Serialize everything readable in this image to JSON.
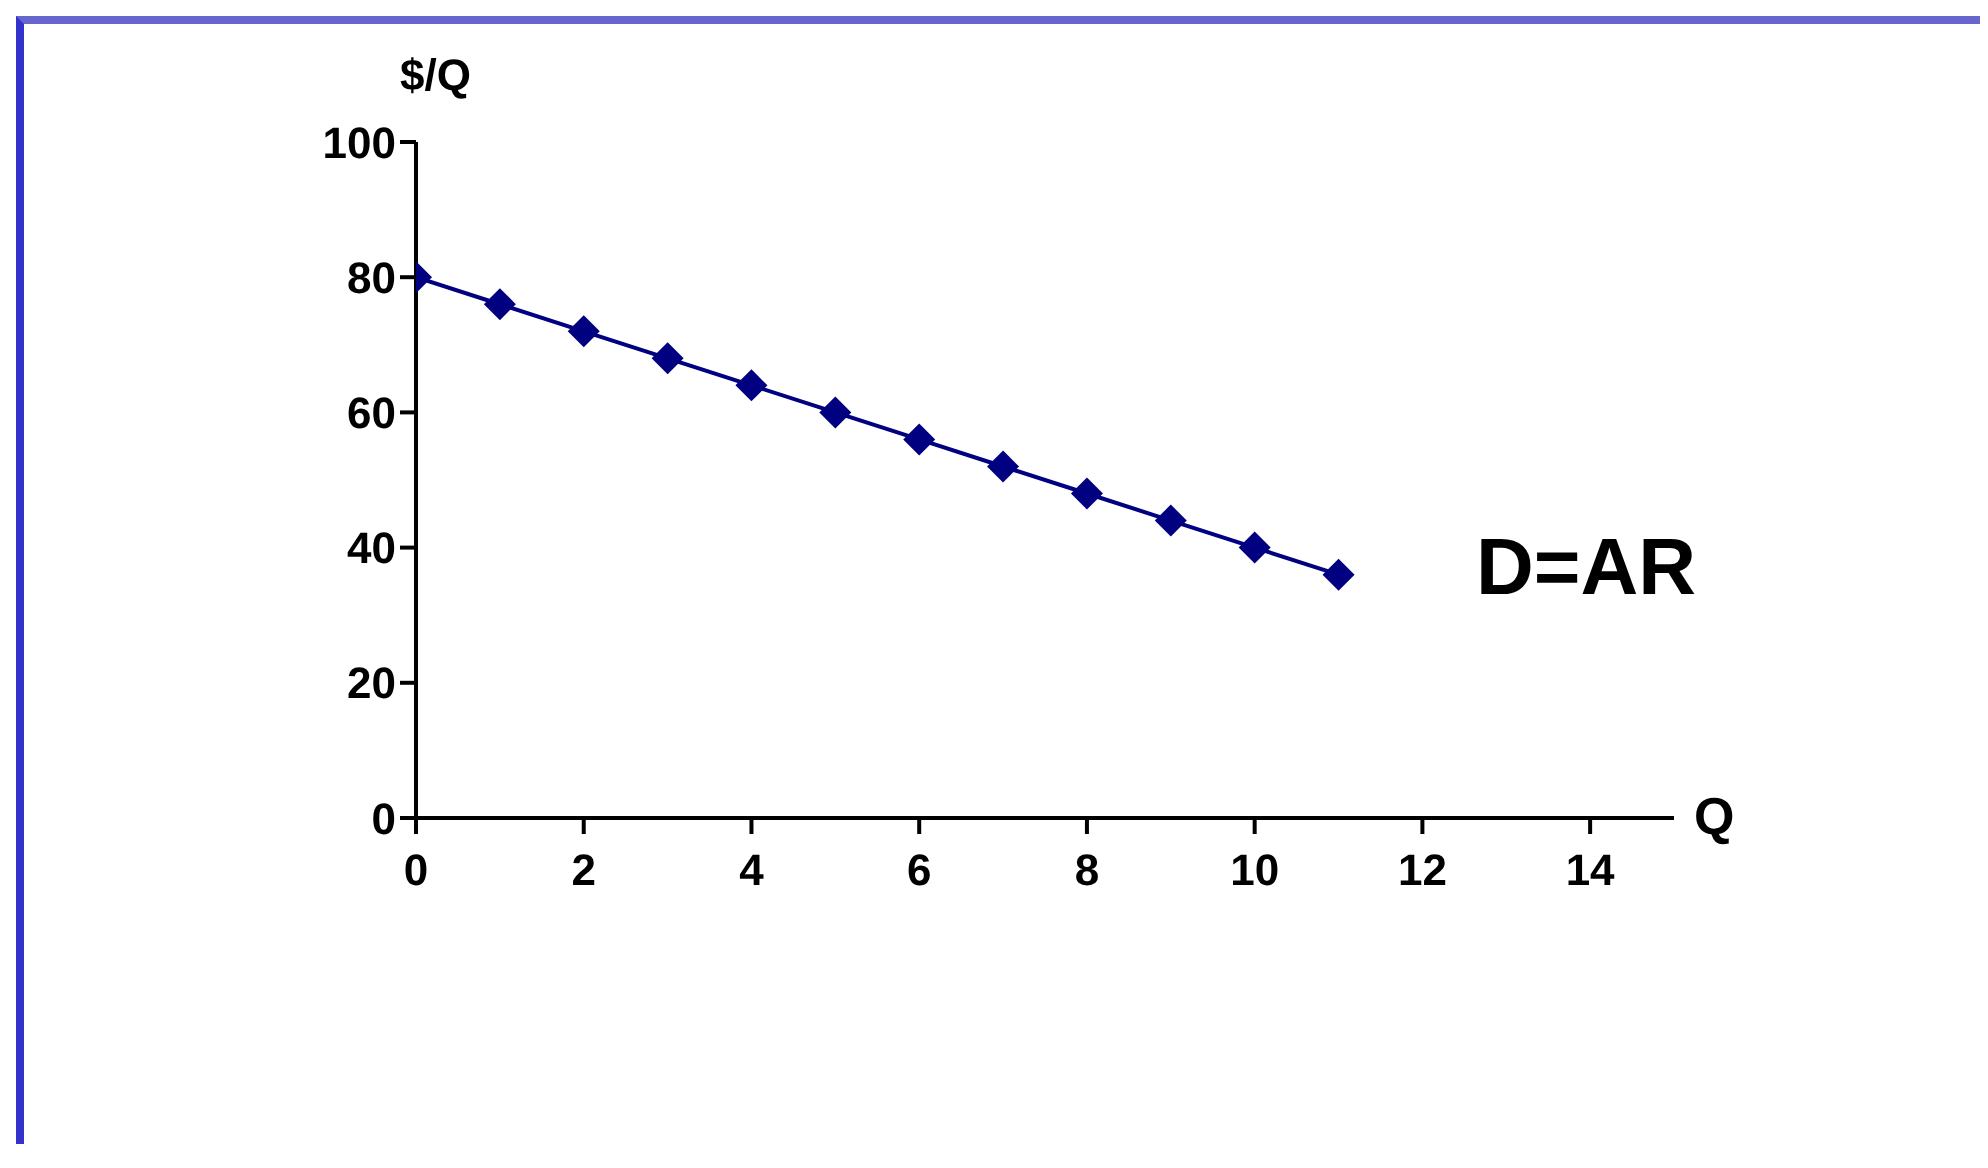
{
  "chart_data": {
    "type": "line",
    "xlabel": "Q",
    "ylabel": "$/Q",
    "x": [
      0,
      1,
      2,
      3,
      4,
      5,
      6,
      7,
      8,
      9,
      10,
      11
    ],
    "series": [
      {
        "color": "#000080",
        "values": [
          80,
          76,
          72,
          68,
          64,
          60,
          56,
          52,
          48,
          44,
          40,
          36
        ]
      }
    ],
    "xlim": [
      0,
      15
    ],
    "xticks": [
      0,
      2,
      4,
      6,
      8,
      10,
      12,
      14
    ],
    "ylim": [
      0,
      100
    ],
    "yticks": [
      0,
      20,
      40,
      60,
      80,
      100
    ],
    "grid": false,
    "legend": false,
    "marker": "diamond",
    "line_style": "solid",
    "annotations": [
      "D=AR"
    ]
  }
}
